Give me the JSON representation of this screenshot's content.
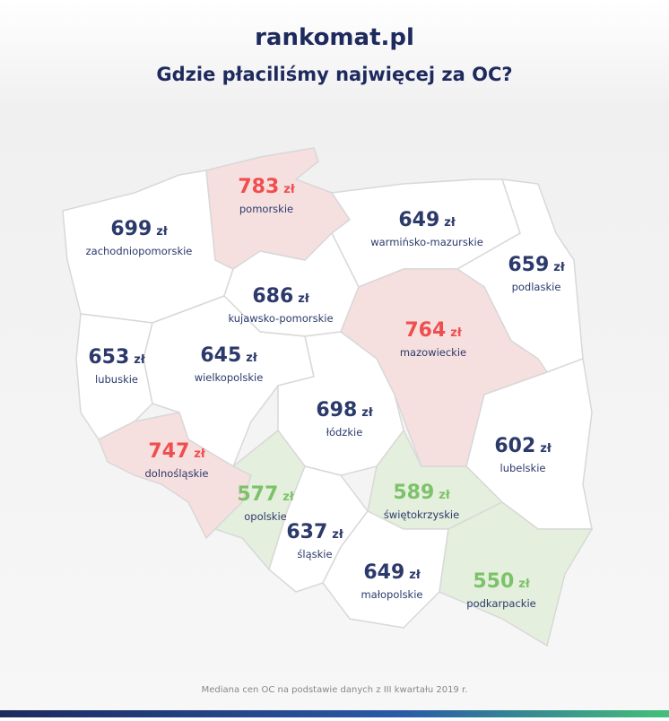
{
  "header": {
    "logo": "rankomat.pl",
    "title": "Gdzie płaciliśmy najwięcej za OC?"
  },
  "unit": "zł",
  "regions": [
    {
      "name": "zachodniopomorskie",
      "value": 699,
      "color": "#2c3a6b",
      "fill": "#ffffff"
    },
    {
      "name": "pomorskie",
      "value": 783,
      "color": "#f04e4e",
      "fill": "#f6dfdf"
    },
    {
      "name": "warmińsko-mazurskie",
      "value": 649,
      "color": "#2c3a6b",
      "fill": "#ffffff"
    },
    {
      "name": "podlaskie",
      "value": 659,
      "color": "#2c3a6b",
      "fill": "#ffffff"
    },
    {
      "name": "kujawsko-pomorskie",
      "value": 686,
      "color": "#2c3a6b",
      "fill": "#ffffff"
    },
    {
      "name": "mazowieckie",
      "value": 764,
      "color": "#f04e4e",
      "fill": "#f6dfdf"
    },
    {
      "name": "lubuskie",
      "value": 653,
      "color": "#2c3a6b",
      "fill": "#ffffff"
    },
    {
      "name": "wielkopolskie",
      "value": 645,
      "color": "#2c3a6b",
      "fill": "#ffffff"
    },
    {
      "name": "łódzkie",
      "value": 698,
      "color": "#2c3a6b",
      "fill": "#ffffff"
    },
    {
      "name": "lubelskie",
      "value": 602,
      "color": "#2c3a6b",
      "fill": "#ffffff"
    },
    {
      "name": "dolnośląskie",
      "value": 747,
      "color": "#f04e4e",
      "fill": "#f6dfdf"
    },
    {
      "name": "opolskie",
      "value": 577,
      "color": "#7cc26a",
      "fill": "#e5efdd"
    },
    {
      "name": "świętokrzyskie",
      "value": 589,
      "color": "#7cc26a",
      "fill": "#e5efdd"
    },
    {
      "name": "śląskie",
      "value": 637,
      "color": "#2c3a6b",
      "fill": "#ffffff"
    },
    {
      "name": "małopolskie",
      "value": 649,
      "color": "#2c3a6b",
      "fill": "#ffffff"
    },
    {
      "name": "podkarpackie",
      "value": 550,
      "color": "#7cc26a",
      "fill": "#e5efdd"
    }
  ],
  "footer": "Mediana cen OC na podstawie danych z III kwartału 2019 r."
}
